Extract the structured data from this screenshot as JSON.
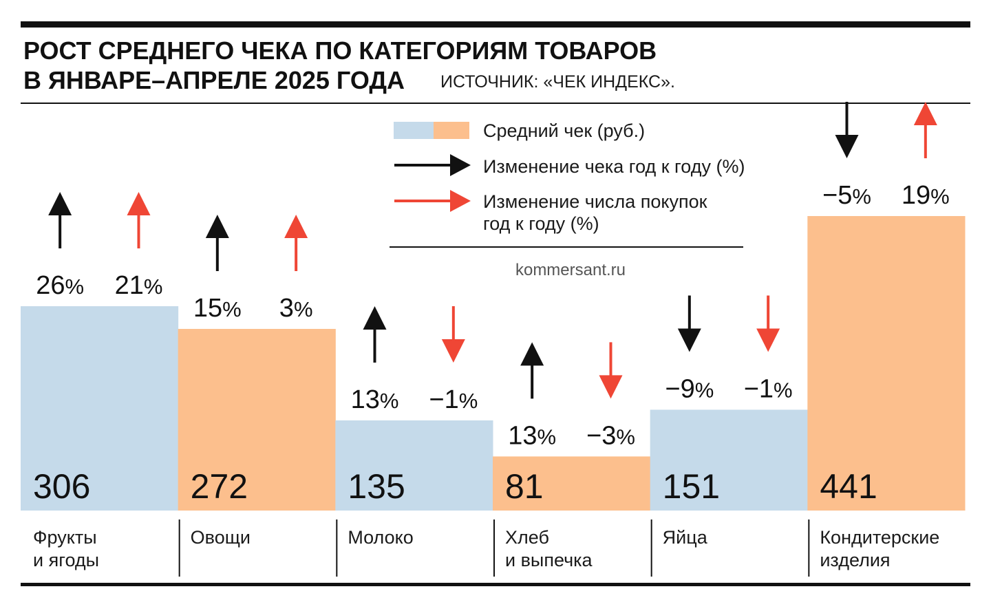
{
  "header": {
    "title_line1": "РОСТ СРЕДНЕГО ЧЕКА ПО КАТЕГОРИЯМ ТОВАРОВ",
    "title_line2": "В ЯНВАРЕ–АПРЕЛЕ 2025 ГОДА",
    "source": "ИСТОЧНИК: «ЧЕК ИНДЕКС»."
  },
  "legend": {
    "bar_label": "Средний чек  (руб.)",
    "check_change_label": "Изменение чека год к году (%)",
    "purchases_change_label_line1": "Изменение числа покупок",
    "purchases_change_label_line2": "год к году (%)"
  },
  "watermark": "kommersant.ru",
  "colors": {
    "bar_blue": "#c5daea",
    "bar_orange": "#fcbf8d",
    "arrow_black": "#111111",
    "arrow_red": "#ef4635",
    "rule": "#111111"
  },
  "chart_data": {
    "type": "bar",
    "title": "РОСТ СРЕДНЕГО ЧЕКА ПО КАТЕГОРИЯМ ТОВАРОВ В ЯНВАРЕ–АПРЕЛЕ 2025 ГОДА",
    "categories": [
      [
        "Фрукты",
        "и ягоды"
      ],
      [
        "Овощи"
      ],
      [
        "Молоко"
      ],
      [
        "Хлеб",
        "и выпечка"
      ],
      [
        "Яйца"
      ],
      [
        "Кондитерские",
        "изделия"
      ]
    ],
    "values": [
      306,
      272,
      135,
      81,
      151,
      441
    ],
    "check_change_pct": [
      26,
      15,
      13,
      13,
      -9,
      -5
    ],
    "purchases_change_pct": [
      21,
      3,
      -1,
      -3,
      -1,
      19
    ],
    "bar_colors": [
      "blue",
      "orange",
      "blue",
      "orange",
      "blue",
      "orange"
    ],
    "ylim": [
      0,
      441
    ],
    "grid": false,
    "legend_position": "top-center"
  }
}
